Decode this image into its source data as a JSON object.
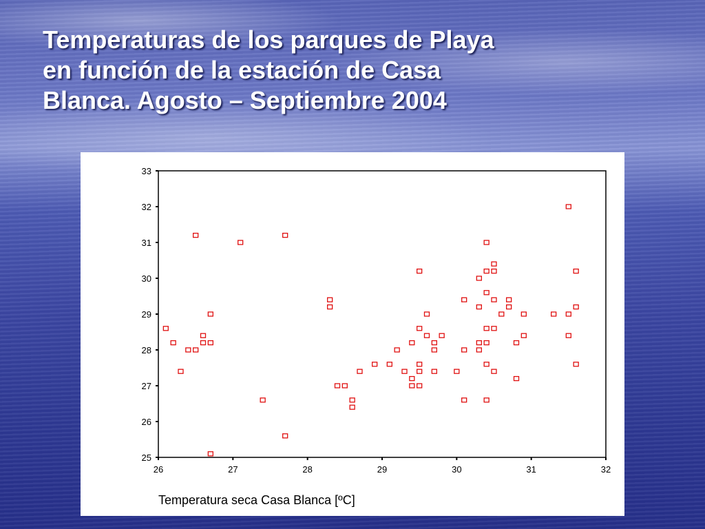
{
  "slide": {
    "title_lines": [
      "Temperaturas de los parques de Playa",
      "en función de la estación de Casa",
      "Blanca. Agosto – Septiembre 2004"
    ]
  },
  "chart_data": {
    "type": "scatter",
    "title": "",
    "xlabel": "Temperatura seca Casa Blanca [ºC]",
    "ylabel": "",
    "xlim": [
      26,
      32
    ],
    "ylim": [
      25,
      33
    ],
    "xticks": [
      "26",
      "27",
      "28",
      "29",
      "30",
      "31",
      "32"
    ],
    "yticks": [
      "25",
      "26",
      "27",
      "28",
      "29",
      "30",
      "31",
      "32",
      "33"
    ],
    "grid": false,
    "legend": "none",
    "marker": "hollow-square",
    "marker_color": "#e01010",
    "points": [
      [
        26.1,
        28.6
      ],
      [
        26.2,
        28.2
      ],
      [
        26.3,
        27.4
      ],
      [
        26.4,
        28.0
      ],
      [
        26.5,
        28.0
      ],
      [
        26.5,
        31.2
      ],
      [
        26.6,
        28.4
      ],
      [
        26.6,
        28.2
      ],
      [
        26.7,
        28.2
      ],
      [
        26.7,
        29.0
      ],
      [
        26.7,
        25.1
      ],
      [
        27.1,
        31.0
      ],
      [
        27.4,
        26.6
      ],
      [
        27.7,
        31.2
      ],
      [
        27.7,
        25.6
      ],
      [
        28.3,
        29.4
      ],
      [
        28.3,
        29.2
      ],
      [
        28.4,
        27.0
      ],
      [
        28.5,
        27.0
      ],
      [
        28.6,
        26.6
      ],
      [
        28.6,
        26.4
      ],
      [
        28.7,
        27.4
      ],
      [
        28.9,
        27.6
      ],
      [
        29.1,
        27.6
      ],
      [
        29.2,
        28.0
      ],
      [
        29.3,
        27.4
      ],
      [
        29.4,
        28.2
      ],
      [
        29.4,
        27.2
      ],
      [
        29.4,
        27.0
      ],
      [
        29.5,
        30.2
      ],
      [
        29.5,
        28.6
      ],
      [
        29.5,
        27.6
      ],
      [
        29.5,
        27.4
      ],
      [
        29.5,
        27.0
      ],
      [
        29.6,
        29.0
      ],
      [
        29.6,
        28.4
      ],
      [
        29.7,
        28.2
      ],
      [
        29.7,
        28.0
      ],
      [
        29.7,
        27.4
      ],
      [
        29.8,
        28.4
      ],
      [
        30.0,
        27.4
      ],
      [
        30.1,
        29.4
      ],
      [
        30.1,
        28.0
      ],
      [
        30.1,
        26.6
      ],
      [
        30.3,
        30.0
      ],
      [
        30.3,
        29.2
      ],
      [
        30.3,
        28.2
      ],
      [
        30.3,
        28.0
      ],
      [
        30.4,
        31.0
      ],
      [
        30.4,
        30.2
      ],
      [
        30.4,
        29.6
      ],
      [
        30.4,
        28.6
      ],
      [
        30.4,
        28.2
      ],
      [
        30.4,
        27.6
      ],
      [
        30.4,
        26.6
      ],
      [
        30.5,
        30.4
      ],
      [
        30.5,
        30.2
      ],
      [
        30.5,
        29.4
      ],
      [
        30.5,
        28.6
      ],
      [
        30.5,
        27.4
      ],
      [
        30.6,
        29.0
      ],
      [
        30.7,
        29.4
      ],
      [
        30.7,
        29.2
      ],
      [
        30.8,
        28.2
      ],
      [
        30.8,
        27.2
      ],
      [
        30.9,
        29.0
      ],
      [
        30.9,
        28.4
      ],
      [
        31.3,
        29.0
      ],
      [
        31.5,
        32.0
      ],
      [
        31.5,
        29.0
      ],
      [
        31.5,
        28.4
      ],
      [
        31.6,
        30.2
      ],
      [
        31.6,
        29.2
      ],
      [
        31.6,
        27.6
      ]
    ]
  }
}
